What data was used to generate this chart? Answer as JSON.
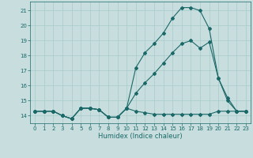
{
  "xlabel": "Humidex (Indice chaleur)",
  "bg_color": "#c8dede",
  "line_color": "#1a6868",
  "grid_color": "#a8cccc",
  "xlim": [
    -0.5,
    23.5
  ],
  "ylim": [
    13.5,
    21.6
  ],
  "yticks": [
    14,
    15,
    16,
    17,
    18,
    19,
    20,
    21
  ],
  "xticks": [
    0,
    1,
    2,
    3,
    4,
    5,
    6,
    7,
    8,
    9,
    10,
    11,
    12,
    13,
    14,
    15,
    16,
    17,
    18,
    19,
    20,
    21,
    22,
    23
  ],
  "line1_x": [
    0,
    1,
    2,
    3,
    4,
    5,
    6,
    7,
    8,
    9,
    10,
    11,
    12,
    13,
    14,
    15,
    16,
    17,
    18,
    19,
    20,
    21,
    22,
    23
  ],
  "line1_y": [
    14.3,
    14.3,
    14.3,
    14.0,
    13.8,
    14.5,
    14.5,
    14.4,
    13.9,
    13.9,
    14.5,
    14.3,
    14.2,
    14.1,
    14.1,
    14.1,
    14.1,
    14.1,
    14.1,
    14.1,
    14.3,
    14.3,
    14.3,
    14.3
  ],
  "line2_x": [
    0,
    1,
    2,
    3,
    4,
    5,
    6,
    7,
    8,
    9,
    10,
    11,
    12,
    13,
    14,
    15,
    16,
    17,
    18,
    19,
    20,
    21,
    22,
    23
  ],
  "line2_y": [
    14.3,
    14.3,
    14.3,
    14.0,
    13.8,
    14.5,
    14.5,
    14.4,
    13.9,
    13.9,
    14.5,
    15.5,
    16.2,
    16.8,
    17.5,
    18.2,
    18.8,
    19.0,
    18.5,
    18.9,
    16.5,
    15.0,
    14.3,
    14.3
  ],
  "line3_x": [
    0,
    1,
    2,
    3,
    4,
    5,
    6,
    7,
    8,
    9,
    10,
    11,
    12,
    13,
    14,
    15,
    16,
    17,
    18,
    19,
    20,
    21,
    22,
    23
  ],
  "line3_y": [
    14.3,
    14.3,
    14.3,
    14.0,
    13.8,
    14.5,
    14.5,
    14.4,
    13.9,
    13.9,
    14.5,
    17.2,
    18.2,
    18.8,
    19.5,
    20.5,
    21.2,
    21.2,
    21.0,
    19.8,
    16.5,
    15.2,
    14.3,
    14.3
  ]
}
